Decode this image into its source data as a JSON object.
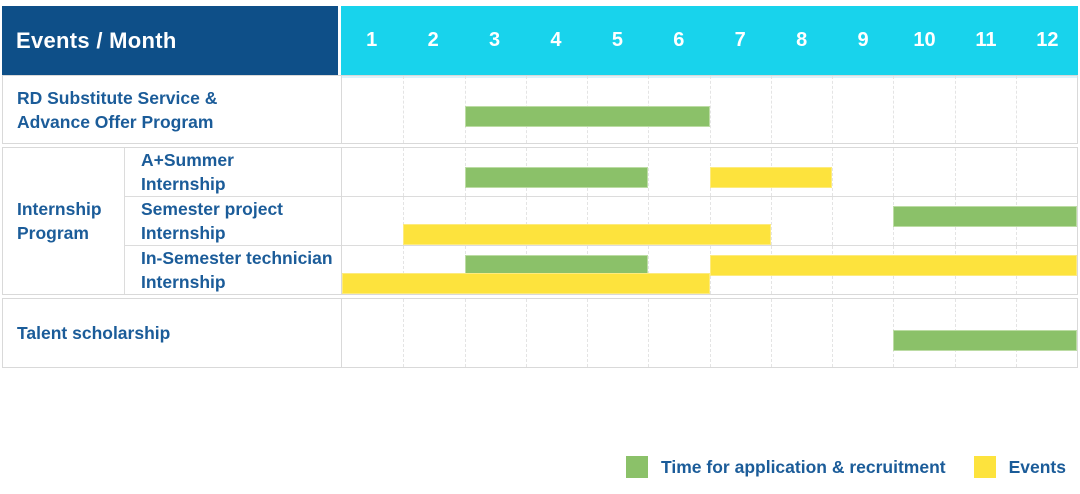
{
  "colors": {
    "header_bg": "#0E4F88",
    "months_bg": "#18D3EC",
    "recruitment_green": "#8BC169",
    "events_yellow": "#FDE33D",
    "label_text": "#1B5C99",
    "grid_line": "#E4E4E4",
    "border": "#D9D9D9"
  },
  "table": {
    "corner_label": "Events / Month",
    "months": [
      "1",
      "2",
      "3",
      "4",
      "5",
      "6",
      "7",
      "8",
      "9",
      "10",
      "11",
      "12"
    ],
    "group_label": "Internship Program",
    "row_labels": {
      "rd": "RD Substitute Service & Advance Offer Program",
      "summer": "A+Summer Internship",
      "semester": "Semester project Internship",
      "insem": "In-Semester technician Internship",
      "talent": "Talent scholarship"
    }
  },
  "legend": {
    "items": [
      {
        "series": "recruitment",
        "label": "Time for application & recruitment"
      },
      {
        "series": "events",
        "label": "Events"
      }
    ]
  },
  "chart_data": {
    "type": "bar",
    "subtype": "gantt",
    "title": "Events / Month",
    "xlabel": "Month",
    "x_ticks": [
      1,
      2,
      3,
      4,
      5,
      6,
      7,
      8,
      9,
      10,
      11,
      12
    ],
    "x_range": [
      1,
      12
    ],
    "grid": "dashed-vertical-month-lines",
    "legend_position": "bottom-right",
    "series_legend": [
      {
        "name": "Time for application & recruitment",
        "color": "#8BC169"
      },
      {
        "name": "Events",
        "color": "#FDE33D"
      }
    ],
    "rows": [
      {
        "label": "RD Substitute Service & Advance Offer Program",
        "group": null,
        "lanes": 1,
        "bars": [
          {
            "series": "recruitment",
            "start_month": 3,
            "end_month": 6,
            "lane": 0
          }
        ]
      },
      {
        "label": "A+Summer Internship",
        "group": "Internship Program",
        "lanes": 1,
        "bars": [
          {
            "series": "recruitment",
            "start_month": 3,
            "end_month": 5,
            "lane": 0
          },
          {
            "series": "events",
            "start_month": 7,
            "end_month": 8,
            "lane": 0
          }
        ]
      },
      {
        "label": "Semester project Internship",
        "group": "Internship Program",
        "lanes": 2,
        "bars": [
          {
            "series": "recruitment",
            "start_month": 10,
            "end_month": 12,
            "lane": 0
          },
          {
            "series": "events",
            "start_month": 2,
            "end_month": 7,
            "lane": 1
          }
        ]
      },
      {
        "label": "In-Semester technician Internship",
        "group": "Internship Program",
        "lanes": 2,
        "bars": [
          {
            "series": "recruitment",
            "start_month": 3,
            "end_month": 5,
            "lane": 0
          },
          {
            "series": "events",
            "start_month": 7,
            "end_month": 12,
            "lane": 0
          },
          {
            "series": "events",
            "start_month": 1,
            "end_month": 6,
            "lane": 1
          }
        ]
      },
      {
        "label": "Talent scholarship",
        "group": null,
        "lanes": 1,
        "bars": [
          {
            "series": "recruitment",
            "start_month": 10,
            "end_month": 12,
            "lane": 0
          }
        ]
      }
    ]
  }
}
